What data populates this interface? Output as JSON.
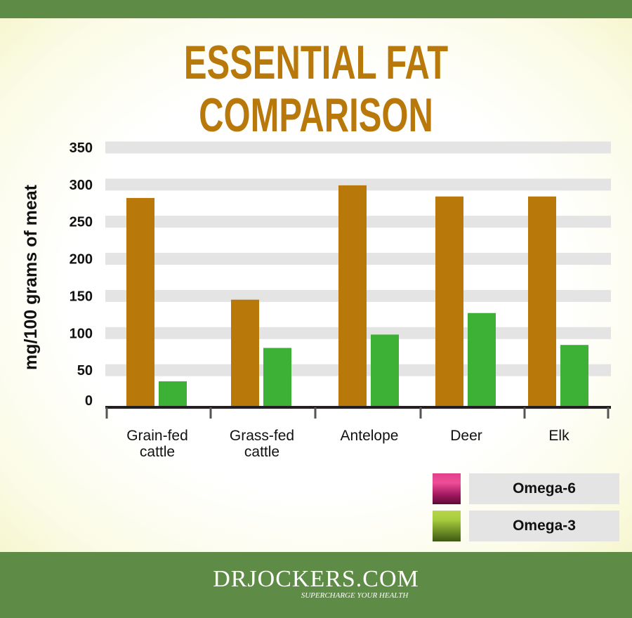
{
  "page": {
    "title": "ESSENTIAL FAT COMPARISON",
    "logo_text": "DRJOCKERS.COM",
    "tagline": "SUPERCHARGE YOUR HEALTH"
  },
  "colors": {
    "background_band": "#5e8c46",
    "title": "#b8790a",
    "omega6_bar": "#b8790a",
    "omega3_bar": "#3db135",
    "omega6_legend_swatch": "#d22a7f",
    "omega3_legend_swatch": "#8fb43a",
    "gridband": "#e4e4e4"
  },
  "legend": {
    "items": [
      {
        "label": "Omega-6",
        "swatch": "magenta-gradient"
      },
      {
        "label": "Omega-3",
        "swatch": "green-gradient"
      }
    ]
  },
  "chart_data": {
    "type": "bar",
    "title": "ESSENTIAL FAT COMPARISON",
    "xlabel": "",
    "ylabel": "mg/100 grams of meat",
    "ylim": [
      0,
      350
    ],
    "yticks": [
      0,
      50,
      100,
      150,
      200,
      250,
      300,
      350
    ],
    "grid": true,
    "legend_position": "bottom-right",
    "categories": [
      "Grain-fed cattle",
      "Grass-fed cattle",
      "Antelope",
      "Deer",
      "Elk"
    ],
    "category_lines": [
      [
        "Grain-fed",
        "cattle"
      ],
      [
        "Grass-fed",
        "cattle"
      ],
      [
        "Antelope"
      ],
      [
        "Deer"
      ],
      [
        "Elk"
      ]
    ],
    "series": [
      {
        "name": "Omega-6",
        "color": "#b8790a",
        "values": [
          282,
          145,
          299,
          284,
          284
        ]
      },
      {
        "name": "Omega-3",
        "color": "#3db135",
        "values": [
          35,
          80,
          98,
          127,
          84
        ]
      }
    ]
  }
}
